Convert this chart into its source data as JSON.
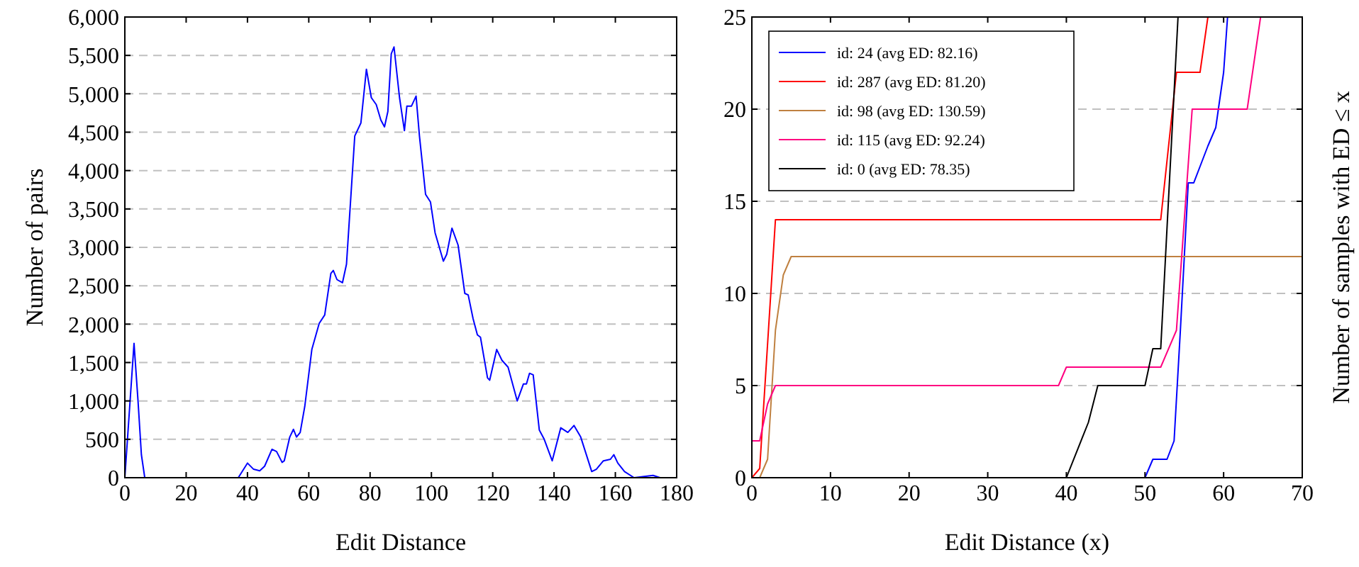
{
  "chart_data": [
    {
      "type": "line",
      "xlabel": "Edit Distance",
      "ylabel": "Number of pairs",
      "xlim": [
        0,
        180
      ],
      "xticks": [
        0,
        20,
        40,
        60,
        80,
        100,
        120,
        140,
        160,
        180
      ],
      "ylim": [
        0,
        6000
      ],
      "yticks": [
        0,
        500,
        {
          "value": 1000,
          "label": "1,000"
        },
        {
          "value": 1500,
          "label": "1,500"
        },
        {
          "value": 2000,
          "label": "2,000"
        },
        {
          "value": 2500,
          "label": "2,500"
        },
        {
          "value": 3000,
          "label": "3,000"
        },
        {
          "value": 3500,
          "label": "3,500"
        },
        {
          "value": 4000,
          "label": "4,000"
        },
        {
          "value": 4500,
          "label": "4,500"
        },
        {
          "value": 5000,
          "label": "5,000"
        },
        {
          "value": 5500,
          "label": "5,500"
        },
        {
          "value": 6000,
          "label": "6,000"
        }
      ],
      "grid": "y",
      "series": [
        {
          "color": "#0000ff",
          "x": [
            0,
            3,
            4.3,
            5.4,
            6.5,
            37,
            40,
            42,
            44,
            45.6,
            48,
            49.5,
            51.3,
            52,
            53.8,
            55,
            56,
            57.2,
            58.7,
            61,
            63.4,
            65.2,
            67.2,
            68,
            69.2,
            71,
            72.3,
            75,
            77,
            78.8,
            80.4,
            82,
            83.5,
            84.7,
            85.8,
            86.9,
            87.8,
            89.6,
            91.2,
            92,
            93.5,
            95,
            96.1,
            98.1,
            99.7,
            101.2,
            103.9,
            105,
            106.7,
            108.7,
            110.9,
            112,
            113.6,
            115,
            116,
            118.3,
            119,
            121.3,
            123,
            125,
            128,
            130,
            131,
            132,
            133.2,
            135.2,
            136.8,
            139.4,
            142.2,
            144.5,
            146.5,
            148.7,
            152.3,
            153.8,
            156.1,
            158.4,
            159.5,
            160.8,
            163,
            166.1,
            172.3,
            174.6
          ],
          "values": [
            0,
            1750,
            1000,
            300,
            0,
            0,
            190,
            110,
            90,
            150,
            370,
            340,
            200,
            220,
            530,
            630,
            530,
            590,
            930,
            1670,
            2010,
            2120,
            2660,
            2700,
            2580,
            2540,
            2780,
            4450,
            4620,
            5320,
            4950,
            4860,
            4660,
            4570,
            4770,
            5520,
            5610,
            4950,
            4520,
            4840,
            4840,
            4970,
            4450,
            3690,
            3590,
            3190,
            2820,
            2910,
            3250,
            3030,
            2400,
            2380,
            2070,
            1860,
            1830,
            1300,
            1270,
            1670,
            1530,
            1440,
            1000,
            1220,
            1220,
            1360,
            1340,
            620,
            500,
            220,
            650,
            590,
            680,
            530,
            80,
            110,
            220,
            240,
            300,
            190,
            80,
            0,
            30,
            0
          ]
        }
      ]
    },
    {
      "type": "line",
      "xlabel": "Edit Distance (x)",
      "ylabel": "Number of samples with ED ≤ x",
      "xlim": [
        0,
        70
      ],
      "xticks": [
        0,
        10,
        20,
        30,
        40,
        50,
        60,
        70
      ],
      "ylim": [
        0,
        25
      ],
      "yticks": [
        0,
        5,
        10,
        15,
        20,
        25
      ],
      "grid": "y",
      "legend": "top left",
      "series": [
        {
          "name": "id: 24 (avg ED: 82.16)",
          "color": "#0000ff",
          "x": [
            0,
            50,
            51,
            52.8,
            53.7,
            54.5,
            55.5,
            56.2,
            57.1,
            58,
            59,
            60,
            60.5
          ],
          "values": [
            0,
            0,
            1,
            1,
            2,
            8,
            16,
            16,
            17,
            18,
            19,
            22,
            25
          ]
        },
        {
          "name": "id: 287 (avg ED: 81.20)",
          "color": "#ff0000",
          "x": [
            0,
            1,
            3,
            52,
            54,
            57,
            58
          ],
          "values": [
            0,
            0.5,
            14,
            14,
            22,
            22,
            25
          ]
        },
        {
          "name": "id: 98 (avg ED: 130.59)",
          "color": "#bf8040",
          "x": [
            1,
            2,
            3,
            4,
            5,
            70
          ],
          "values": [
            0,
            1,
            8,
            11,
            12,
            12
          ]
        },
        {
          "name": "id: 115 (avg ED: 92.24)",
          "color": "#ff0080",
          "x": [
            0,
            1,
            2,
            3,
            39,
            40,
            52,
            54,
            56,
            63,
            64.7
          ],
          "values": [
            2,
            2,
            4,
            5,
            5,
            6,
            6,
            8,
            20,
            20,
            25
          ]
        },
        {
          "name": "id: 0 (avg ED: 78.35)",
          "color": "#000000",
          "x": [
            0,
            40,
            42.8,
            44,
            50,
            51,
            52,
            54.2
          ],
          "values": [
            0,
            0,
            3,
            5,
            5,
            7,
            7,
            25
          ]
        }
      ]
    }
  ]
}
